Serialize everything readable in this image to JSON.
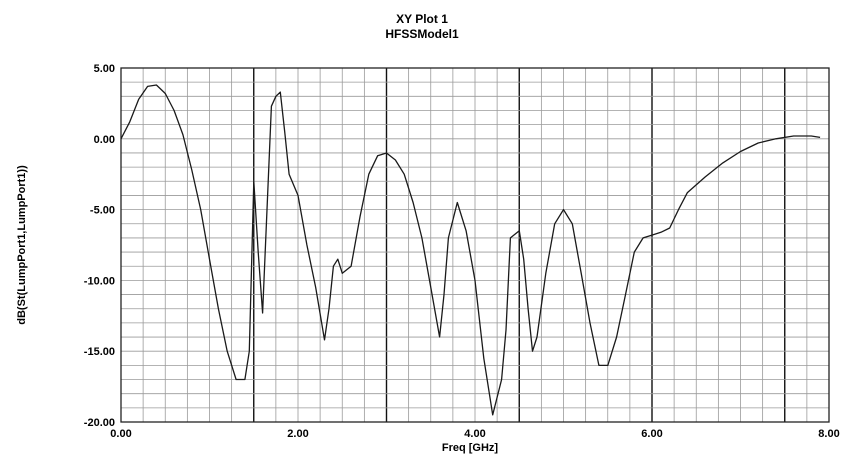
{
  "chart_data": {
    "type": "line",
    "title": "XY Plot 1",
    "subtitle": "HFSSModel1",
    "xlabel": "Freq [GHz]",
    "ylabel": "dB(St(LumpPort1,LumpPort1))",
    "xlim": [
      0,
      8
    ],
    "ylim": [
      -20,
      5
    ],
    "x_ticks": [
      0,
      2,
      4,
      6,
      8
    ],
    "x_tick_labels": [
      "0.00",
      "2.00",
      "4.00",
      "6.00",
      "8.00"
    ],
    "y_ticks": [
      5,
      0,
      -5,
      -10,
      -15,
      -20
    ],
    "y_tick_labels": [
      "5.00",
      "0.00",
      "-5.00",
      "-10.00",
      "-15.00",
      "-20.00"
    ],
    "grid": true,
    "legend": "none",
    "colors": {
      "series": "#1a1a1a",
      "grid_minor": "#9a9a9a",
      "grid_major": "#111111",
      "frame": "#222222"
    },
    "series": [
      {
        "x": [
          0.0,
          0.1,
          0.2,
          0.3,
          0.4,
          0.5,
          0.6,
          0.7,
          0.8,
          0.9,
          1.0,
          1.1,
          1.2,
          1.3,
          1.4,
          1.45,
          1.5,
          1.55,
          1.6,
          1.65,
          1.7,
          1.75,
          1.8,
          1.85,
          1.9,
          2.0,
          2.1,
          2.2,
          2.3,
          2.35,
          2.4,
          2.45,
          2.5,
          2.6,
          2.7,
          2.8,
          2.9,
          3.0,
          3.1,
          3.2,
          3.3,
          3.4,
          3.5,
          3.6,
          3.65,
          3.7,
          3.8,
          3.9,
          4.0,
          4.1,
          4.2,
          4.3,
          4.35,
          4.4,
          4.5,
          4.55,
          4.6,
          4.65,
          4.7,
          4.8,
          4.9,
          5.0,
          5.1,
          5.2,
          5.3,
          5.4,
          5.5,
          5.6,
          5.7,
          5.8,
          5.9,
          6.0,
          6.1,
          6.2,
          6.3,
          6.4,
          6.6,
          6.8,
          7.0,
          7.2,
          7.4,
          7.6,
          7.8,
          7.9
        ],
        "y": [
          0.0,
          1.2,
          2.8,
          3.7,
          3.8,
          3.2,
          2.0,
          0.3,
          -2.2,
          -5.0,
          -8.5,
          -12.0,
          -15.0,
          -17.0,
          -17.0,
          -15.0,
          -3.0,
          -8.0,
          -12.3,
          -5.0,
          2.3,
          3.0,
          3.3,
          0.5,
          -2.5,
          -4.0,
          -7.5,
          -10.5,
          -14.2,
          -12.0,
          -9.0,
          -8.5,
          -9.5,
          -9.0,
          -5.5,
          -2.5,
          -1.2,
          -1.0,
          -1.5,
          -2.5,
          -4.5,
          -7.0,
          -10.5,
          -14.0,
          -11.0,
          -7.0,
          -4.5,
          -6.5,
          -10.0,
          -15.5,
          -19.5,
          -17.0,
          -13.5,
          -7.0,
          -6.5,
          -8.5,
          -12.0,
          -15.0,
          -14.0,
          -9.5,
          -6.0,
          -5.0,
          -6.0,
          -9.5,
          -13.0,
          -16.0,
          -16.0,
          -14.0,
          -11.0,
          -8.0,
          -7.0,
          -6.8,
          -6.6,
          -6.3,
          -5.0,
          -3.8,
          -2.7,
          -1.7,
          -0.9,
          -0.3,
          0.0,
          0.2,
          0.2,
          0.1
        ]
      }
    ]
  }
}
